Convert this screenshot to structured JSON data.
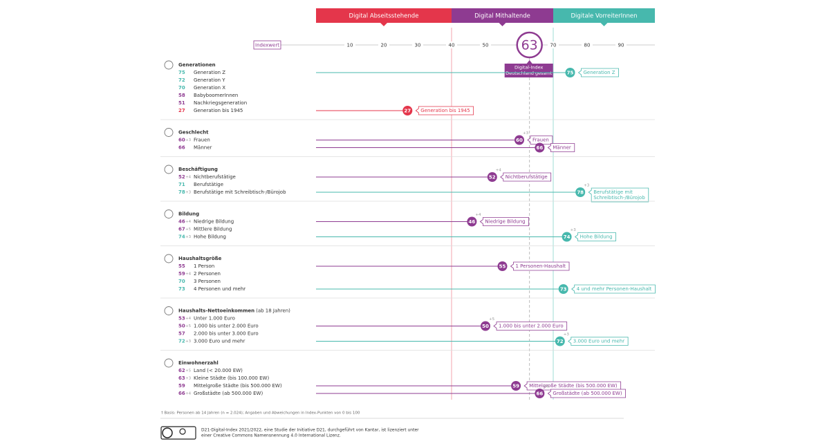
{
  "chart_data": {
    "type": "dot",
    "segments": [
      {
        "name": "Digital Abseitsstehende",
        "color": "#e4364b",
        "range": [
          0,
          40
        ]
      },
      {
        "name": "Digital Mithaltende",
        "color": "#8e3b91",
        "range": [
          40,
          70
        ]
      },
      {
        "name": "Digitale VorreiterInnen",
        "color": "#47b8ad",
        "range": [
          70,
          100
        ]
      }
    ],
    "axis_label": "Indexwert",
    "xlim": [
      0,
      100
    ],
    "xticks": [
      10,
      20,
      30,
      40,
      50,
      70,
      80,
      90
    ],
    "overall": {
      "value": 63,
      "label": [
        "Digital-Index",
        "Deutschland gesamt"
      ]
    },
    "groups": [
      {
        "title": "Generationen",
        "rows": [
          {
            "value": 75,
            "label": "Generation Z",
            "callout": "Generation Z"
          },
          {
            "value": 72,
            "label": "Generation Y"
          },
          {
            "value": 70,
            "label": "Generation X"
          },
          {
            "value": 58,
            "label": "BabyboomerInnen"
          },
          {
            "value": 51,
            "label": "Nachkriegsgeneration"
          },
          {
            "value": 27,
            "label": "Generation bis 1945",
            "callout": "Generation bis 1945"
          }
        ]
      },
      {
        "title": "Geschlecht",
        "rows": [
          {
            "value": 60,
            "change": "+3",
            "label": "Frauen",
            "callout": "Frauen"
          },
          {
            "value": 66,
            "label": "Männer",
            "callout": "Männer"
          }
        ]
      },
      {
        "title": "Beschäftigung",
        "rows": [
          {
            "value": 52,
            "change": "+4",
            "label": "Nichtberufstätige",
            "callout": "Nichtberufstätige"
          },
          {
            "value": 71,
            "label": "Berufstätige"
          },
          {
            "value": 78,
            "change": "+3",
            "label": "Berufstätige mit Schreibtisch-/Bürojob",
            "callout": [
              "Berufstätige mit",
              "Schreibtisch-/Bürojob"
            ]
          }
        ]
      },
      {
        "title": "Bildung",
        "rows": [
          {
            "value": 46,
            "change": "+4",
            "label": "Niedrige Bildung",
            "callout": "Niedrige Bildung"
          },
          {
            "value": 67,
            "change": "+5",
            "label": "Mittlere Bildung"
          },
          {
            "value": 74,
            "change": "+3",
            "label": "Hohe Bildung",
            "callout": "Hohe Bildung"
          }
        ]
      },
      {
        "title": "Haushaltsgröße",
        "rows": [
          {
            "value": 55,
            "label": "1 Person",
            "callout": "1 Personen-Haushalt"
          },
          {
            "value": 59,
            "change": "+4",
            "label": "2 Personen"
          },
          {
            "value": 70,
            "label": "3 Personen"
          },
          {
            "value": 73,
            "label": "4 Personen und mehr",
            "callout": "4 und mehr Personen-Haushalt"
          }
        ]
      },
      {
        "title": "Haushalts-Nettoeinkommen",
        "note": "(ab 18 Jahren)",
        "rows": [
          {
            "value": 53,
            "change": "+4",
            "label": "Unter 1.000 Euro"
          },
          {
            "value": 50,
            "change": "+5",
            "label": "1.000 bis unter 2.000 Euro",
            "callout": "1.000 bis unter 2.000 Euro"
          },
          {
            "value": 57,
            "label": "2.000 bis unter 3.000 Euro"
          },
          {
            "value": 72,
            "change": "+3",
            "label": "3.000 Euro und mehr",
            "callout": "3.000 Euro und mehr"
          }
        ]
      },
      {
        "title": "Einwohnerzahl",
        "rows": [
          {
            "value": 62,
            "change": "+5",
            "label": "Land (< 20.000 EW)"
          },
          {
            "value": 63,
            "change": "+3",
            "label": "Kleine Städte (bis 100.000 EW)"
          },
          {
            "value": 59,
            "label": "Mittelgroße Städte (bis 500.000 EW)",
            "callout": "Mittelgroße Städte (bis 500.000 EW)"
          },
          {
            "value": 66,
            "change": "+4",
            "label": "Großstädte (ab 500.000 EW)",
            "callout": "Großstädte (ab 500.000 EW)"
          }
        ]
      }
    ],
    "footnote": "† Basis: Personen ab 14 Jahren (n = 2.024); Angaben und Abweichungen in Index-Punkten von 0 bis 100",
    "license": [
      "D21-Digital-Index 2021/2022, eine Studie der Initiative D21, durchgeführt von Kantar, ist lizenziert unter",
      "einer Creative Commons Namensnennung 4.0 International Lizenz."
    ]
  }
}
